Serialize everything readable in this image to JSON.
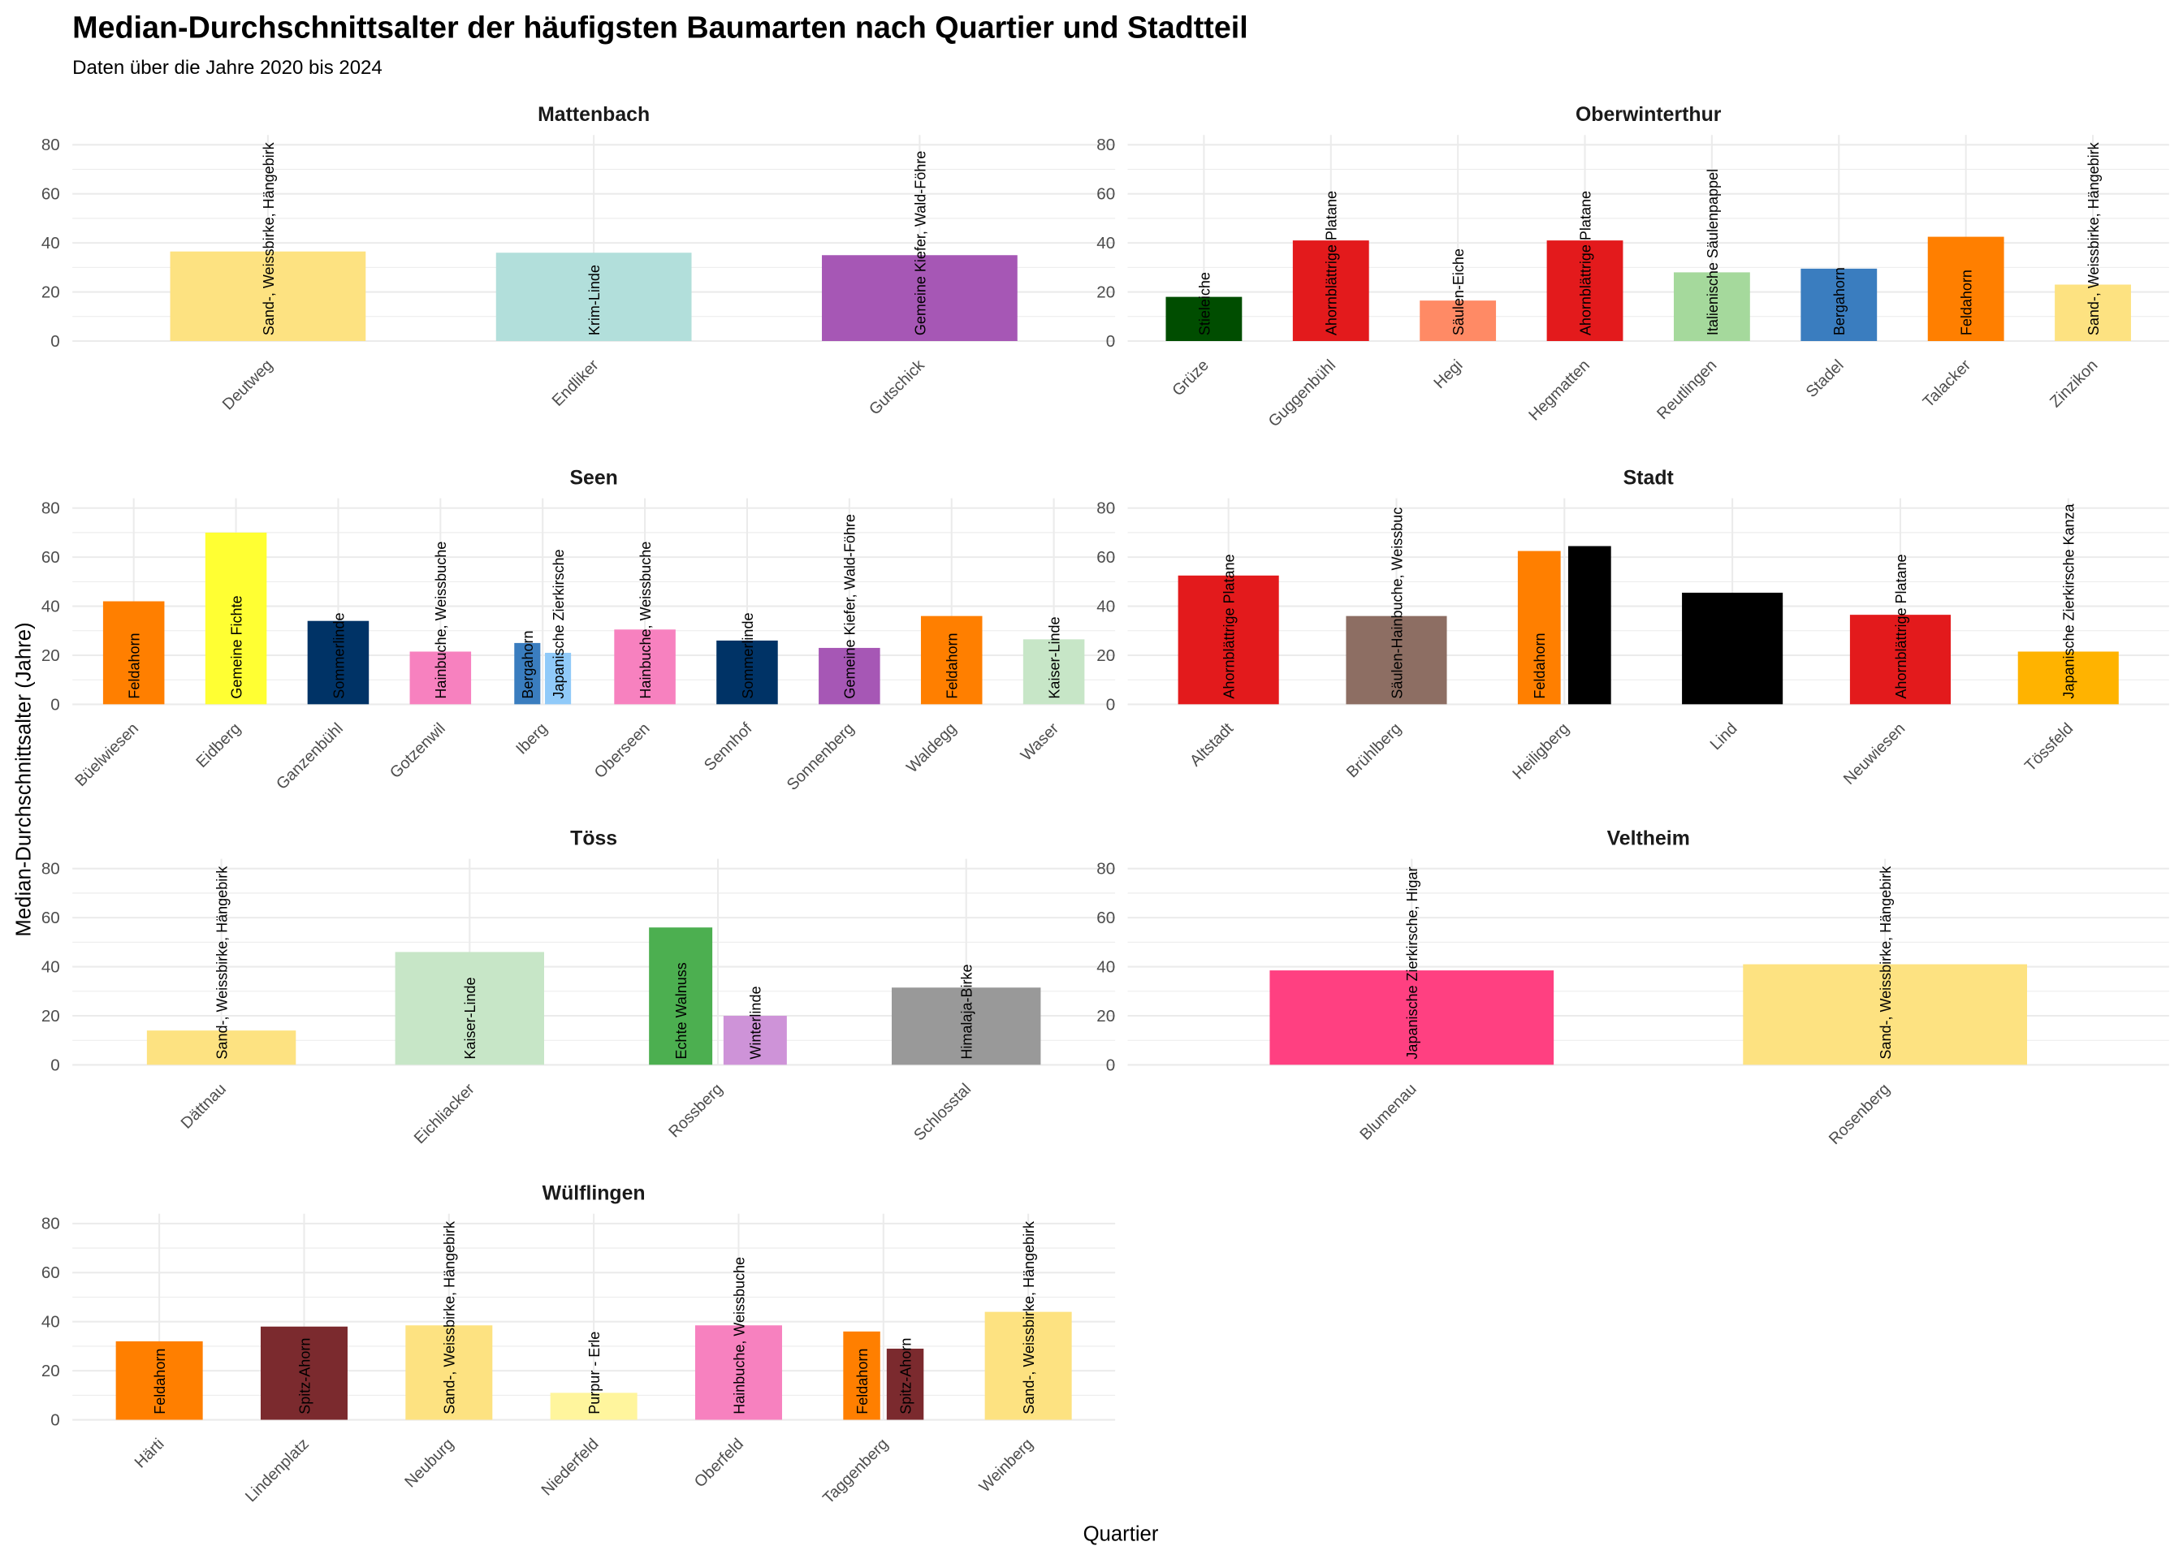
{
  "chart_data": {
    "type": "bar",
    "title": "Median-Durchschnittsalter der häufigsten Baumarten nach Quartier und Stadtteil",
    "subtitle": "Daten über die Jahre 2020 bis 2024",
    "xlabel": "Quartier",
    "ylabel": "Median-Durchschnittsalter (Jahre)",
    "ylim": [
      0,
      84
    ],
    "yticks": [
      "0",
      "20",
      "40",
      "60",
      "80"
    ],
    "grid": true,
    "facets": [
      {
        "name": "Mattenbach",
        "categories": [
          "Deutweg",
          "Endliker",
          "Gutschick"
        ],
        "bars": [
          {
            "quartier": "Deutweg",
            "species": "Sand-, Weissbirke, Hängebirk",
            "value": 36.5,
            "color": "#FDE281"
          },
          {
            "quartier": "Endliker",
            "species": "Krim-Linde",
            "value": 36,
            "color": "#B2DFDB"
          },
          {
            "quartier": "Gutschick",
            "species": "Gemeine Kiefer, Wald-Föhre",
            "value": 35,
            "color": "#A657B5"
          }
        ]
      },
      {
        "name": "Oberwinterthur",
        "categories": [
          "Grüze",
          "Guggenbühl",
          "Hegi",
          "Hegmatten",
          "Reutlingen",
          "Stadel",
          "Talacker",
          "Zinzikon"
        ],
        "bars": [
          {
            "quartier": "Grüze",
            "species": "Stieleiche",
            "value": 18,
            "color": "#004D00"
          },
          {
            "quartier": "Guggenbühl",
            "species": "Ahornblättrige Platane",
            "value": 41,
            "color": "#E31A1C"
          },
          {
            "quartier": "Hegi",
            "species": "Säulen-Eiche",
            "value": 16.5,
            "color": "#FF8A65"
          },
          {
            "quartier": "Hegmatten",
            "species": "Ahornblättrige Platane",
            "value": 41,
            "color": "#E31A1C"
          },
          {
            "quartier": "Reutlingen",
            "species": "Italienische Säulenpappel",
            "value": 28,
            "color": "#A5D99C"
          },
          {
            "quartier": "Stadel",
            "species": "Bergahorn",
            "value": 29.5,
            "color": "#3A7DBF"
          },
          {
            "quartier": "Talacker",
            "species": "Feldahorn",
            "value": 42.5,
            "color": "#FF7F00"
          },
          {
            "quartier": "Zinzikon",
            "species": "Sand-, Weissbirke, Hängebirk",
            "value": 23,
            "color": "#FDE281"
          }
        ]
      },
      {
        "name": "Seen",
        "categories": [
          "Büelwiesen",
          "Eidberg",
          "Ganzenbühl",
          "Gotzenwil",
          "Iberg",
          "Oberseen",
          "Sennhof",
          "Sonnenberg",
          "Waldegg",
          "Waser"
        ],
        "bars": [
          {
            "quartier": "Büelwiesen",
            "species": "Feldahorn",
            "value": 42,
            "color": "#FF7F00"
          },
          {
            "quartier": "Eidberg",
            "species": "Gemeine Fichte",
            "value": 70,
            "color": "#FFFF33"
          },
          {
            "quartier": "Ganzenbühl",
            "species": "Sommerlinde",
            "value": 34,
            "color": "#003366"
          },
          {
            "quartier": "Gotzenwil",
            "species": "Hainbuche, Weissbuche",
            "value": 21.5,
            "color": "#F781BF"
          },
          {
            "quartier": "Iberg",
            "species": "Bergahorn",
            "value": 25,
            "color": "#3A7DBF"
          },
          {
            "quartier": "Iberg",
            "species": "Japanische Zierkirsche",
            "value": 21,
            "color": "#90CAF9"
          },
          {
            "quartier": "Oberseen",
            "species": "Hainbuche, Weissbuche",
            "value": 30.5,
            "color": "#F781BF"
          },
          {
            "quartier": "Sennhof",
            "species": "Sommerlinde",
            "value": 26,
            "color": "#003366"
          },
          {
            "quartier": "Sonnenberg",
            "species": "Gemeine Kiefer, Wald-Föhre",
            "value": 23,
            "color": "#A657B5"
          },
          {
            "quartier": "Waldegg",
            "species": "Feldahorn",
            "value": 36,
            "color": "#FF7F00"
          },
          {
            "quartier": "Waser",
            "species": "Kaiser-Linde",
            "value": 26.5,
            "color": "#C7E6C7"
          }
        ]
      },
      {
        "name": "Stadt",
        "categories": [
          "Altstadt",
          "Brühlberg",
          "Heiligberg",
          "Lind",
          "Neuwiesen",
          "Tössfeld"
        ],
        "bars": [
          {
            "quartier": "Altstadt",
            "species": "Ahornblättrige Platane",
            "value": 52.5,
            "color": "#E31A1C"
          },
          {
            "quartier": "Brühlberg",
            "species": "Säulen-Hainbuche, Weissbuc",
            "value": 36,
            "color": "#8D6E63"
          },
          {
            "quartier": "Heiligberg",
            "species": "Feldahorn",
            "value": 62.5,
            "color": "#FF7F00"
          },
          {
            "quartier": "Heiligberg",
            "species": "",
            "value": 64.5,
            "color": "#000000"
          },
          {
            "quartier": "Lind",
            "species": "",
            "value": 45.5,
            "color": "#000000"
          },
          {
            "quartier": "Neuwiesen",
            "species": "Ahornblättrige Platane",
            "value": 36.5,
            "color": "#E31A1C"
          },
          {
            "quartier": "Tössfeld",
            "species": "Japanische Zierkirsche Kanza",
            "value": 21.5,
            "color": "#FFB300"
          }
        ]
      },
      {
        "name": "Töss",
        "categories": [
          "Dättnau",
          "Eichliacker",
          "Rossberg",
          "Schlosstal"
        ],
        "bars": [
          {
            "quartier": "Dättnau",
            "species": "Sand-, Weissbirke, Hängebirk",
            "value": 14,
            "color": "#FDE281"
          },
          {
            "quartier": "Eichliacker",
            "species": "Kaiser-Linde",
            "value": 46,
            "color": "#C7E6C7"
          },
          {
            "quartier": "Rossberg",
            "species": "Echte Walnuss",
            "value": 56,
            "color": "#4CAF50"
          },
          {
            "quartier": "Rossberg",
            "species": "Winterlinde",
            "value": 20,
            "color": "#CE93D8"
          },
          {
            "quartier": "Schlosstal",
            "species": "Himalaja-Birke",
            "value": 31.5,
            "color": "#999999"
          }
        ]
      },
      {
        "name": "Veltheim",
        "categories": [
          "Blumenau",
          "Rosenberg"
        ],
        "bars": [
          {
            "quartier": "Blumenau",
            "species": "Japanische Zierkirsche, Higar",
            "value": 38.5,
            "color": "#FF4081"
          },
          {
            "quartier": "Rosenberg",
            "species": "Sand-, Weissbirke, Hängebirk",
            "value": 41,
            "color": "#FDE281"
          }
        ]
      },
      {
        "name": "Wülflingen",
        "categories": [
          "Härti",
          "Lindenplatz",
          "Neuburg",
          "Niederfeld",
          "Oberfeld",
          "Taggenberg",
          "Weinberg"
        ],
        "bars": [
          {
            "quartier": "Härti",
            "species": "Feldahorn",
            "value": 32,
            "color": "#FF7F00"
          },
          {
            "quartier": "Lindenplatz",
            "species": "Spitz-Ahorn",
            "value": 38,
            "color": "#7B2A2E"
          },
          {
            "quartier": "Neuburg",
            "species": "Sand-, Weissbirke, Hängebirk",
            "value": 38.5,
            "color": "#FDE281"
          },
          {
            "quartier": "Niederfeld",
            "species": "Purpur - Erle",
            "value": 11,
            "color": "#FFF59D"
          },
          {
            "quartier": "Oberfeld",
            "species": "Hainbuche, Weissbuche",
            "value": 38.5,
            "color": "#F781BF"
          },
          {
            "quartier": "Taggenberg",
            "species": "Feldahorn",
            "value": 36,
            "color": "#FF7F00"
          },
          {
            "quartier": "Taggenberg",
            "species": "Spitz-Ahorn",
            "value": 29,
            "color": "#7B2A2E"
          },
          {
            "quartier": "Weinberg",
            "species": "Sand-, Weissbirke, Hängebirk",
            "value": 44,
            "color": "#FDE281"
          }
        ]
      }
    ]
  }
}
